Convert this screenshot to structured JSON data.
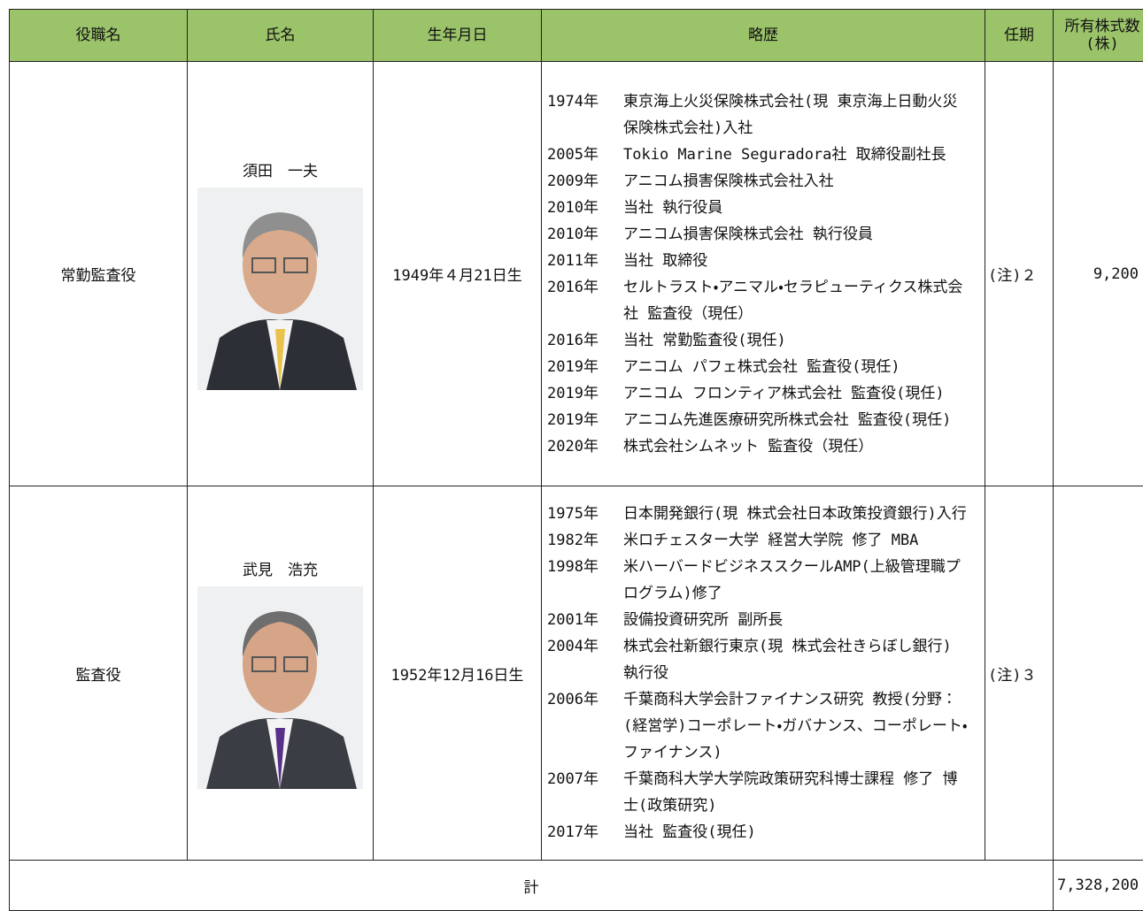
{
  "header": {
    "columns": [
      "役職名",
      "氏名",
      "生年月日",
      "略歴",
      "任期",
      "所有株式数(株)"
    ]
  },
  "table": {
    "rows": [
      {
        "position": "常勤監査役",
        "name": "須田　一夫",
        "birth": "1949年４月21日生",
        "career": [
          {
            "year": "1974年",
            "text": "東京海上火災保険株式会社(現 東京海上日動火災保険株式会社)入社"
          },
          {
            "year": "2005年",
            "text": "Tokio Marine Seguradora社 取締役副社長"
          },
          {
            "year": "2009年",
            "text": "アニコム損害保険株式会社入社"
          },
          {
            "year": "2010年",
            "text": "当社 執行役員"
          },
          {
            "year": "2010年",
            "text": "アニコム損害保険株式会社 執行役員"
          },
          {
            "year": "2011年",
            "text": "当社 取締役"
          },
          {
            "year": "2016年",
            "text": "セルトラスト・アニマル・セラピューティクス株式会社 監査役（現任）"
          },
          {
            "year": "2016年",
            "text": "当社 常勤監査役(現任)"
          },
          {
            "year": "2019年",
            "text": "アニコム パフェ株式会社 監査役(現任)"
          },
          {
            "year": "2019年",
            "text": "アニコム フロンティア株式会社 監査役(現任)"
          },
          {
            "year": "2019年",
            "text": "アニコム先進医療研究所株式会社 監査役(現任)"
          },
          {
            "year": "2020年",
            "text": "株式会社シムネット 監査役（現任）"
          }
        ],
        "term": "(注)２",
        "shares": "9,200"
      },
      {
        "position": "監査役",
        "name": "武見　浩充",
        "birth": "1952年12月16日生",
        "career": [
          {
            "year": "1975年",
            "text": "日本開発銀行(現 株式会社日本政策投資銀行)入行"
          },
          {
            "year": "1982年",
            "text": "米ロチェスター大学 経営大学院 修了 MBA"
          },
          {
            "year": "1998年",
            "text": "米ハーバードビジネススクールAMP(上級管理職プログラム)修了"
          },
          {
            "year": "2001年",
            "text": "設備投資研究所 副所長"
          },
          {
            "year": "2004年",
            "text": "株式会社新銀行東京(現 株式会社きらぼし銀行) 執行役"
          },
          {
            "year": "2006年",
            "text": "千葉商科大学会計ファイナンス研究 教授(分野：(経営学)コーポレート・ガバナンス、コーポレート・ファイナンス)"
          },
          {
            "year": "2007年",
            "text": "千葉商科大学大学院政策研究科博士課程 修了 博士(政策研究)"
          },
          {
            "year": "2017年",
            "text": "当社 監査役(現任)"
          }
        ],
        "term": "(注)３",
        "shares": ""
      }
    ],
    "total_label": "計",
    "total_value": "7,328,200"
  }
}
